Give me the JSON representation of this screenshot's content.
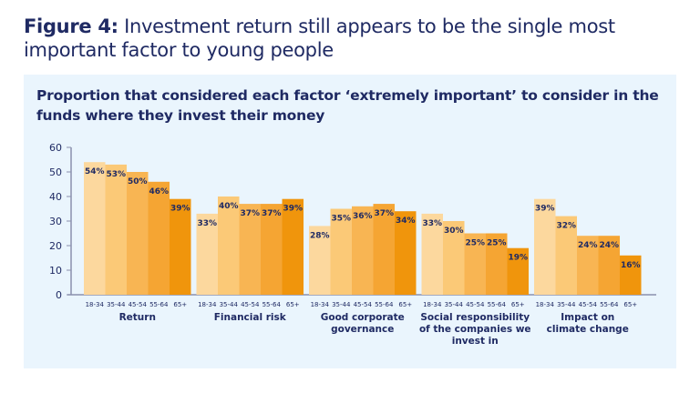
{
  "figure": {
    "label": "Figure 4:",
    "title": "Investment return still appears to be the single most important factor to young people"
  },
  "chart_data": {
    "type": "bar",
    "title": "Proportion that considered each factor ‘extremely important’ to consider in the funds where they invest their money",
    "ylim": [
      0,
      60
    ],
    "yticks": [
      0,
      10,
      20,
      30,
      40,
      50,
      60
    ],
    "grid": false,
    "age_groups": [
      "18-34",
      "35-44",
      "45-54",
      "55-64",
      "65+"
    ],
    "categories": [
      {
        "label": [
          "Return"
        ],
        "values": [
          54,
          53,
          50,
          46,
          39
        ]
      },
      {
        "label": [
          "Financial risk"
        ],
        "values": [
          33,
          40,
          37,
          37,
          39
        ]
      },
      {
        "label": [
          "Good corporate",
          "governance"
        ],
        "values": [
          28,
          35,
          36,
          37,
          34
        ]
      },
      {
        "label": [
          "Social responsibility",
          "of the companies we",
          "invest in"
        ],
        "values": [
          33,
          30,
          25,
          25,
          19
        ]
      },
      {
        "label": [
          "Impact on",
          "climate change"
        ],
        "values": [
          39,
          32,
          24,
          24,
          16
        ]
      }
    ],
    "value_suffix": "%",
    "colors": [
      "#fcd89e",
      "#fbc977",
      "#f8b553",
      "#f5a533",
      "#f0950c"
    ],
    "label_color": "#1f2a63",
    "axis_color": "#8a90ad"
  }
}
